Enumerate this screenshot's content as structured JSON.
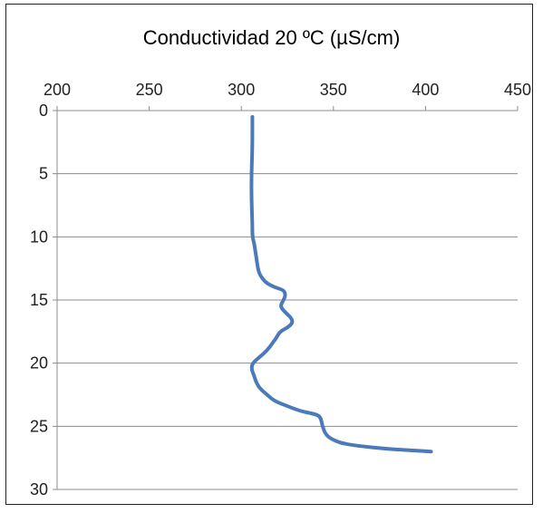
{
  "chart_data": {
    "type": "line",
    "title": "Conductividad 20 ºC (µS/cm)",
    "xlabel": "",
    "ylabel": "",
    "x_axis_position": "top",
    "y_axis_inverted": true,
    "xlim": [
      200,
      450
    ],
    "ylim": [
      0,
      30
    ],
    "x_ticks": [
      "200",
      "250",
      "300",
      "350",
      "400",
      "450"
    ],
    "y_ticks": [
      "0",
      "5",
      "10",
      "15",
      "20",
      "25",
      "30"
    ],
    "grid": "horizontal",
    "legend": "none",
    "series": [
      {
        "color": "#4a7ab8",
        "points": [
          [
            306,
            0.5
          ],
          [
            306,
            3
          ],
          [
            305.5,
            5
          ],
          [
            305.5,
            7
          ],
          [
            306,
            9
          ],
          [
            306,
            10
          ],
          [
            307,
            10.5
          ],
          [
            308,
            11.5
          ],
          [
            309,
            12.5
          ],
          [
            310,
            13
          ],
          [
            313,
            13.6
          ],
          [
            318,
            14
          ],
          [
            323,
            14.2
          ],
          [
            324,
            14.6
          ],
          [
            323,
            15
          ],
          [
            321,
            15.5
          ],
          [
            324,
            16
          ],
          [
            327,
            16.4
          ],
          [
            328,
            16.8
          ],
          [
            325,
            17.2
          ],
          [
            321,
            17.5
          ],
          [
            319,
            18
          ],
          [
            317,
            18.4
          ],
          [
            314,
            19
          ],
          [
            310,
            19.5
          ],
          [
            306,
            20
          ],
          [
            305.5,
            20.5
          ],
          [
            307,
            21
          ],
          [
            308,
            21.5
          ],
          [
            310,
            22
          ],
          [
            314,
            22.5
          ],
          [
            318,
            23
          ],
          [
            325,
            23.4
          ],
          [
            332,
            23.8
          ],
          [
            339,
            24
          ],
          [
            343,
            24.2
          ],
          [
            344,
            25
          ],
          [
            346,
            25.7
          ],
          [
            350,
            26.1
          ],
          [
            356,
            26.4
          ],
          [
            366,
            26.6
          ],
          [
            380,
            26.8
          ],
          [
            392,
            26.9
          ],
          [
            403,
            27
          ]
        ]
      }
    ]
  }
}
